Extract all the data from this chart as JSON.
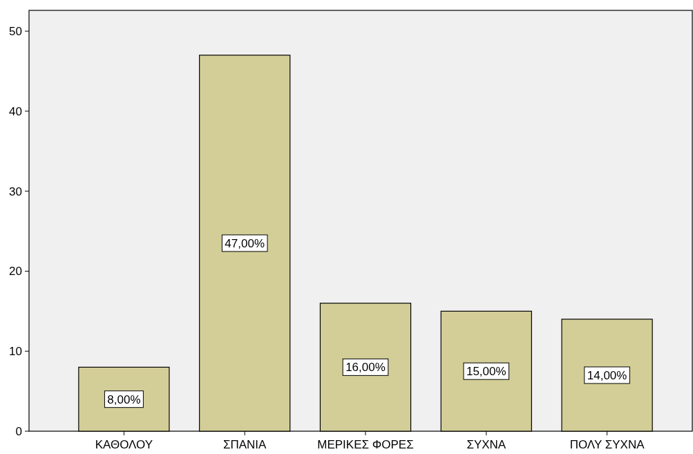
{
  "chart_data": {
    "type": "bar",
    "categories": [
      "ΚΑΘΟΛΟΥ",
      "ΣΠΑΝΙΑ",
      "ΜΕΡΙΚΕΣ ΦΟΡΕΣ",
      "ΣΥΧΝΑ",
      "ΠΟΛΥ ΣΥΧΝΑ"
    ],
    "values": [
      8,
      47,
      16,
      15,
      14
    ],
    "value_labels": [
      "8,00%",
      "47,00%",
      "16,00%",
      "15,00%",
      "14,00%"
    ],
    "color": "#d3ce97",
    "ylim": [
      0,
      52.6
    ],
    "yticks": [
      0,
      10,
      20,
      30,
      40,
      50
    ],
    "grid": false
  }
}
